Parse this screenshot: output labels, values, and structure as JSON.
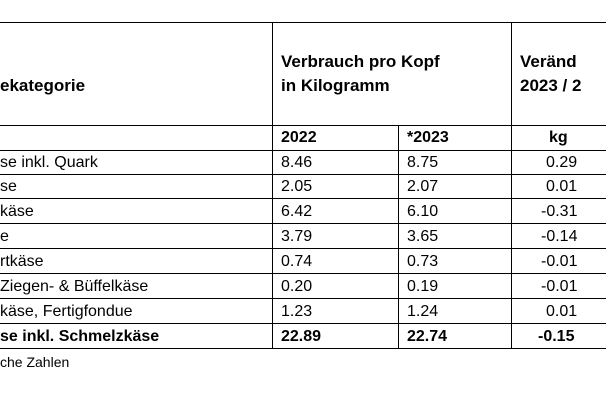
{
  "table": {
    "header": {
      "category": "ekategorie",
      "consumption_line1": "Verbrauch pro Kopf",
      "consumption_line2": "in Kilogramm",
      "change_line1": "Veränd",
      "change_line2": "2023 / 2"
    },
    "subheader": {
      "year1": "2022",
      "year2": "*2023",
      "unit": "kg"
    },
    "rows": [
      {
        "name": "se inkl. Quark",
        "v2022": "8.46",
        "v2023": "8.75",
        "change": "0.29"
      },
      {
        "name": "se",
        "v2022": "2.05",
        "v2023": "2.07",
        "change": "0.01"
      },
      {
        "name": "käse",
        "v2022": "6.42",
        "v2023": "6.10",
        "change": "-0.31"
      },
      {
        "name": "e",
        "v2022": "3.79",
        "v2023": "3.65",
        "change": "-0.14"
      },
      {
        "name": "rtkäse",
        "v2022": "0.74",
        "v2023": "0.73",
        "change": "-0.01"
      },
      {
        "name": "Ziegen- & Büffelkäse",
        "v2022": "0.20",
        "v2023": "0.19",
        "change": "-0.01"
      },
      {
        "name": "käse, Fertigfondue",
        "v2022": "1.23",
        "v2023": "1.24",
        "change": "0.01"
      }
    ],
    "total": {
      "name": "se inkl. Schmelzkäse",
      "v2022": "22.89",
      "v2023": "22.74",
      "change": "-0.15"
    },
    "footnote": "che Zahlen"
  }
}
